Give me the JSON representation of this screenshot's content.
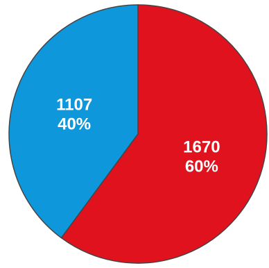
{
  "chart_data": {
    "type": "pie",
    "title": "",
    "slices": [
      {
        "value": 1670,
        "value_label": "1670",
        "percent_label": "60%",
        "color": "#e0121e"
      },
      {
        "value": 1107,
        "value_label": "1107",
        "percent_label": "40%",
        "color": "#0f97dc"
      }
    ],
    "start_angle_deg": 0,
    "direction": "clockwise",
    "outline_color": "#444444"
  }
}
